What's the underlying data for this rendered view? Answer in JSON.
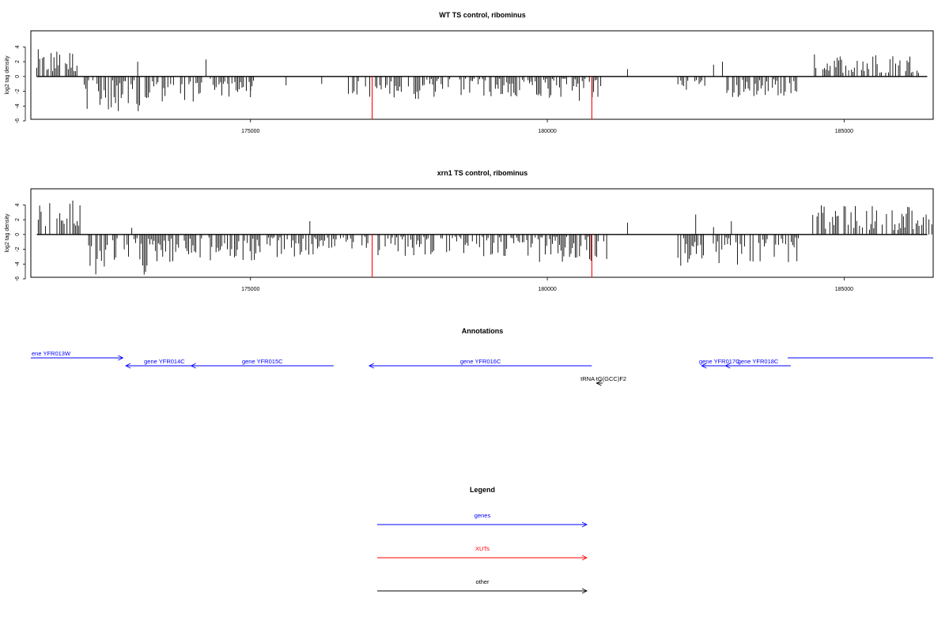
{
  "colors": {
    "genes": "#0000ff",
    "xuts": "#ff0000",
    "other": "#000000",
    "highlight": "#ff0000",
    "bars": "#000000"
  },
  "chart_data": [
    {
      "type": "bar",
      "title": "WT TS control, ribominus",
      "ylabel": "log2 tag density",
      "xlim": [
        171300,
        186500
      ],
      "ylim": [
        -6,
        5
      ],
      "x_ticks": [
        175000,
        180000,
        185000
      ],
      "x_tick_labels": [
        "175000",
        "180000",
        "185000"
      ],
      "y_ticks": [
        4,
        2,
        0,
        -2,
        -4,
        -6
      ],
      "y_tick_labels": [
        "4",
        "2",
        "0",
        "-2",
        "-4",
        "-6"
      ],
      "grid": false,
      "highlighted_bars": [
        {
          "x": 177050,
          "y": -5.8,
          "color": "red"
        },
        {
          "x": 180750,
          "y": -5.8,
          "color": "red"
        }
      ],
      "bars_regions": [
        {
          "x_range": [
            171400,
            172100
          ],
          "sign": 1,
          "min": 0.6,
          "max": 3.7
        },
        {
          "x_range": [
            172200,
            173300
          ],
          "sign": -1,
          "min": 0.5,
          "max": 4.7
        },
        {
          "x_range": [
            173300,
            174200
          ],
          "sign": -1,
          "min": 0.3,
          "max": 3.5
        },
        {
          "x_range": [
            174300,
            175050
          ],
          "sign": -1,
          "min": 0.3,
          "max": 2.8
        },
        {
          "x_range": [
            176600,
            177900
          ],
          "sign": -1,
          "min": 0.3,
          "max": 3.1
        },
        {
          "x_range": [
            177900,
            179700
          ],
          "sign": -1,
          "min": 0.3,
          "max": 2.8
        },
        {
          "x_range": [
            179700,
            180900
          ],
          "sign": -1,
          "min": 0.3,
          "max": 3.7
        },
        {
          "x_range": [
            182200,
            182700
          ],
          "sign": -1,
          "min": 0.3,
          "max": 1.8
        },
        {
          "x_range": [
            183000,
            184200
          ],
          "sign": -1,
          "min": 0.3,
          "max": 2.8
        },
        {
          "x_range": [
            184500,
            186300
          ],
          "sign": 1,
          "min": 0.5,
          "max": 3.1
        }
      ],
      "sparse_bars": [
        {
          "x": 173100,
          "y": 2.0
        },
        {
          "x": 174250,
          "y": 2.3
        },
        {
          "x": 181350,
          "y": 1.0
        },
        {
          "x": 182800,
          "y": 1.6
        },
        {
          "x": 182950,
          "y": 2.0
        },
        {
          "x": 175000,
          "y": -2.8
        },
        {
          "x": 175600,
          "y": -1.2
        },
        {
          "x": 176200,
          "y": -1.0
        }
      ]
    },
    {
      "type": "bar",
      "title": "xrn1 TS control, ribominus",
      "ylabel": "log2 tag density",
      "xlim": [
        171300,
        186500
      ],
      "ylim": [
        -6,
        5
      ],
      "x_ticks": [
        175000,
        180000,
        185000
      ],
      "x_tick_labels": [
        "175000",
        "180000",
        "185000"
      ],
      "y_ticks": [
        4,
        2,
        0,
        -2,
        -4,
        -6
      ],
      "y_tick_labels": [
        "4",
        "2",
        "0",
        "-2",
        "-4",
        "-6"
      ],
      "grid": false,
      "highlighted_bars": [
        {
          "x": 177050,
          "y": -5.8,
          "color": "red"
        },
        {
          "x": 180750,
          "y": -5.8,
          "color": "red"
        }
      ],
      "bars_regions": [
        {
          "x_range": [
            171400,
            172200
          ],
          "sign": 1,
          "min": 0.8,
          "max": 4.7
        },
        {
          "x_range": [
            172250,
            173400
          ],
          "sign": -1,
          "min": 0.5,
          "max": 5.7
        },
        {
          "x_range": [
            173400,
            174200
          ],
          "sign": -1,
          "min": 0.5,
          "max": 3.9
        },
        {
          "x_range": [
            174300,
            175400
          ],
          "sign": -1,
          "min": 0.4,
          "max": 3.9
        },
        {
          "x_range": [
            175400,
            176200
          ],
          "sign": -1,
          "min": 0.3,
          "max": 3.2
        },
        {
          "x_range": [
            176200,
            177000
          ],
          "sign": -1,
          "min": 0.3,
          "max": 2.0
        },
        {
          "x_range": [
            177100,
            179700
          ],
          "sign": -1,
          "min": 0.3,
          "max": 3.0
        },
        {
          "x_range": [
            179700,
            181000
          ],
          "sign": -1,
          "min": 0.3,
          "max": 4.3
        },
        {
          "x_range": [
            182200,
            184300
          ],
          "sign": -1,
          "min": 0.4,
          "max": 4.3
        },
        {
          "x_range": [
            184400,
            186500
          ],
          "sign": 1,
          "min": 0.6,
          "max": 4.0
        }
      ],
      "sparse_bars": [
        {
          "x": 173000,
          "y": 0.9
        },
        {
          "x": 176000,
          "y": 1.8
        },
        {
          "x": 181350,
          "y": 1.6
        },
        {
          "x": 182500,
          "y": 2.7
        },
        {
          "x": 182800,
          "y": 1.0
        },
        {
          "x": 183100,
          "y": 1.8
        }
      ]
    }
  ],
  "annotations": {
    "title": "Annotations",
    "features": [
      {
        "label": "ene YFR013W",
        "start": 171300,
        "end": 172850,
        "strand": "+",
        "kind": "genes",
        "row": 0
      },
      {
        "label": "gene YFR014C",
        "start": 172900,
        "end": 174200,
        "strand": "-",
        "kind": "genes",
        "row": 1
      },
      {
        "label": "gene YFR015C",
        "start": 174000,
        "end": 176400,
        "strand": "-",
        "kind": "genes",
        "row": 1
      },
      {
        "label": "gene YFR016C",
        "start": 177000,
        "end": 180750,
        "strand": "-",
        "kind": "genes",
        "row": 1
      },
      {
        "label": "tRNA tG(GCC)F2",
        "start": 180830,
        "end": 180930,
        "strand": "-",
        "kind": "other",
        "row": 2
      },
      {
        "label": "gene YFR017C",
        "start": 182600,
        "end": 183200,
        "strand": "-",
        "kind": "genes",
        "row": 1
      },
      {
        "label": "gene YFR018C",
        "start": 183000,
        "end": 184100,
        "strand": "-",
        "kind": "genes",
        "row": 1
      },
      {
        "label": "",
        "start": 184050,
        "end": 186500,
        "strand": "-",
        "kind": "genes",
        "row": 0
      }
    ]
  },
  "legend": {
    "title": "Legend",
    "entries": [
      {
        "label": "genes",
        "kind": "genes"
      },
      {
        "label": "XUTs",
        "kind": "xuts"
      },
      {
        "label": "other",
        "kind": "other"
      }
    ]
  }
}
